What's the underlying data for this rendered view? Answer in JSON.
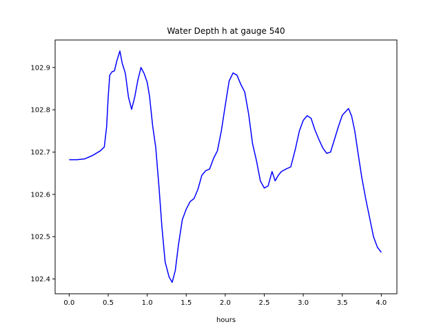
{
  "chart_data": {
    "type": "line",
    "title": "Water Depth h at gauge 540",
    "xlabel": "hours",
    "ylabel": "",
    "xlim": [
      -0.18,
      4.2
    ],
    "ylim": [
      102.365,
      102.965
    ],
    "x_ticks": [
      0.0,
      0.5,
      1.0,
      1.5,
      2.0,
      2.5,
      3.0,
      3.5,
      4.0
    ],
    "x_tick_labels": [
      "0.0",
      "0.5",
      "1.0",
      "1.5",
      "2.0",
      "2.5",
      "3.0",
      "3.5",
      "4.0"
    ],
    "y_ticks": [
      102.4,
      102.5,
      102.6,
      102.7,
      102.8,
      102.9
    ],
    "y_tick_labels": [
      "102.4",
      "102.5",
      "102.6",
      "102.7",
      "102.8",
      "102.9"
    ],
    "grid": false,
    "series": [
      {
        "color": "#0000ff",
        "points": [
          [
            0.0,
            102.682
          ],
          [
            0.1,
            102.682
          ],
          [
            0.2,
            102.684
          ],
          [
            0.3,
            102.692
          ],
          [
            0.4,
            102.703
          ],
          [
            0.45,
            102.712
          ],
          [
            0.48,
            102.76
          ],
          [
            0.5,
            102.83
          ],
          [
            0.52,
            102.882
          ],
          [
            0.55,
            102.89
          ],
          [
            0.58,
            102.892
          ],
          [
            0.61,
            102.915
          ],
          [
            0.65,
            102.939
          ],
          [
            0.68,
            102.91
          ],
          [
            0.72,
            102.886
          ],
          [
            0.76,
            102.83
          ],
          [
            0.8,
            102.801
          ],
          [
            0.84,
            102.83
          ],
          [
            0.88,
            102.87
          ],
          [
            0.92,
            102.9
          ],
          [
            0.96,
            102.886
          ],
          [
            1.0,
            102.865
          ],
          [
            1.03,
            102.832
          ],
          [
            1.07,
            102.762
          ],
          [
            1.11,
            102.71
          ],
          [
            1.15,
            102.62
          ],
          [
            1.19,
            102.52
          ],
          [
            1.23,
            102.44
          ],
          [
            1.28,
            102.405
          ],
          [
            1.32,
            102.392
          ],
          [
            1.36,
            102.42
          ],
          [
            1.4,
            102.48
          ],
          [
            1.45,
            102.54
          ],
          [
            1.5,
            102.565
          ],
          [
            1.55,
            102.583
          ],
          [
            1.6,
            102.59
          ],
          [
            1.65,
            102.612
          ],
          [
            1.7,
            102.645
          ],
          [
            1.75,
            102.656
          ],
          [
            1.8,
            102.66
          ],
          [
            1.85,
            102.685
          ],
          [
            1.9,
            102.703
          ],
          [
            1.95,
            102.75
          ],
          [
            2.0,
            102.81
          ],
          [
            2.05,
            102.868
          ],
          [
            2.1,
            102.887
          ],
          [
            2.15,
            102.882
          ],
          [
            2.2,
            102.86
          ],
          [
            2.25,
            102.842
          ],
          [
            2.3,
            102.79
          ],
          [
            2.35,
            102.72
          ],
          [
            2.4,
            102.68
          ],
          [
            2.45,
            102.632
          ],
          [
            2.5,
            102.615
          ],
          [
            2.55,
            102.62
          ],
          [
            2.6,
            102.654
          ],
          [
            2.64,
            102.632
          ],
          [
            2.68,
            102.645
          ],
          [
            2.72,
            102.654
          ],
          [
            2.78,
            102.66
          ],
          [
            2.84,
            102.665
          ],
          [
            2.9,
            102.708
          ],
          [
            2.95,
            102.75
          ],
          [
            3.0,
            102.775
          ],
          [
            3.05,
            102.786
          ],
          [
            3.1,
            102.78
          ],
          [
            3.15,
            102.752
          ],
          [
            3.2,
            102.73
          ],
          [
            3.25,
            102.71
          ],
          [
            3.3,
            102.697
          ],
          [
            3.35,
            102.7
          ],
          [
            3.4,
            102.73
          ],
          [
            3.45,
            102.76
          ],
          [
            3.5,
            102.787
          ],
          [
            3.55,
            102.797
          ],
          [
            3.58,
            102.803
          ],
          [
            3.62,
            102.785
          ],
          [
            3.66,
            102.75
          ],
          [
            3.7,
            102.7
          ],
          [
            3.75,
            102.64
          ],
          [
            3.8,
            102.59
          ],
          [
            3.85,
            102.545
          ],
          [
            3.9,
            102.5
          ],
          [
            3.95,
            102.475
          ],
          [
            4.0,
            102.463
          ]
        ]
      }
    ]
  }
}
